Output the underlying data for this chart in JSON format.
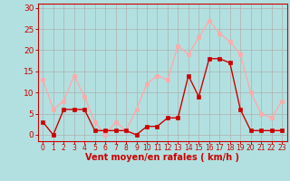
{
  "x": [
    0,
    1,
    2,
    3,
    4,
    5,
    6,
    7,
    8,
    9,
    10,
    11,
    12,
    13,
    14,
    15,
    16,
    17,
    18,
    19,
    20,
    21,
    22,
    23
  ],
  "wind_avg": [
    3,
    0,
    6,
    6,
    6,
    1,
    1,
    1,
    1,
    0,
    2,
    2,
    4,
    4,
    14,
    9,
    18,
    18,
    17,
    6,
    1,
    1,
    1,
    1
  ],
  "wind_gust": [
    13,
    6,
    8,
    14,
    9,
    3,
    0,
    3,
    1,
    6,
    12,
    14,
    13,
    21,
    19,
    23,
    27,
    24,
    22,
    19,
    10,
    5,
    4,
    8
  ],
  "color_avg": "#cc0000",
  "color_gust": "#ffaaaa",
  "bg_color": "#b2e0e0",
  "grid_color": "#b0b0b0",
  "xlabel": "Vent moyen/en rafales ( km/h )",
  "ylabel_ticks": [
    0,
    5,
    10,
    15,
    20,
    25,
    30
  ],
  "xlim": [
    -0.5,
    23.5
  ],
  "ylim": [
    -1.5,
    31
  ],
  "color_red": "#cc0000",
  "marker": "s",
  "markersize": 2.2,
  "linewidth": 1.0,
  "xlabel_fontsize": 7,
  "ytick_fontsize": 6.5,
  "xtick_fontsize": 5.5
}
